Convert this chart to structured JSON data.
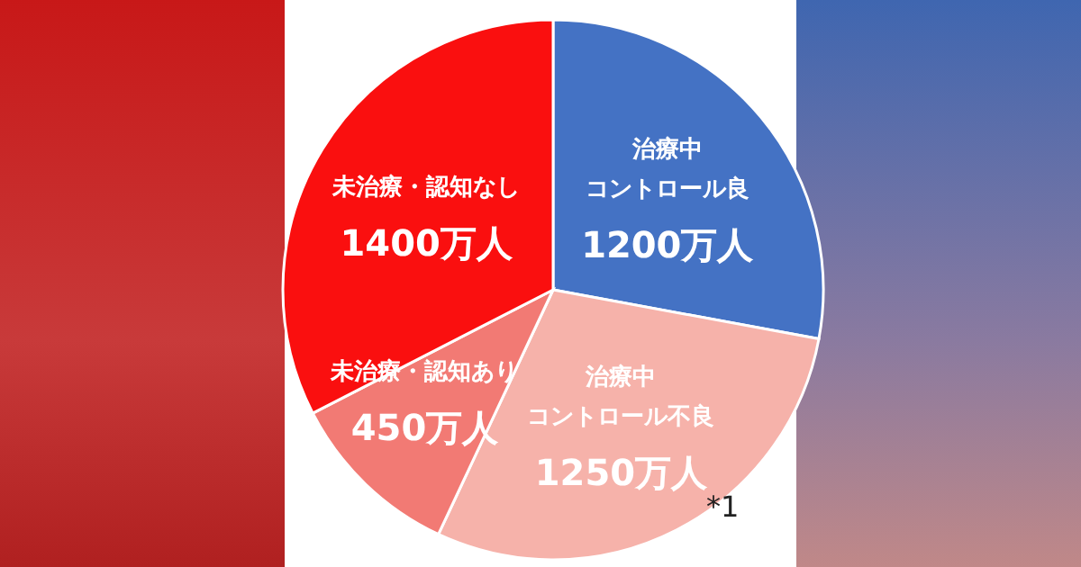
{
  "chart_data": {
    "type": "pie",
    "categories": [
      "治療中コントロール良",
      "治療中コントロール不良",
      "未治療・認知あり",
      "未治療・認知なし"
    ],
    "values": [
      1200,
      1250,
      450,
      1400
    ],
    "value_labels": [
      "1200万人",
      "1250万人",
      "450万人",
      "1400万人"
    ],
    "colors": [
      "#4472c4",
      "#f6b2aa",
      "#f27a74",
      "#fa0f0f"
    ],
    "annotations": [
      "*1"
    ],
    "legend": false
  }
}
